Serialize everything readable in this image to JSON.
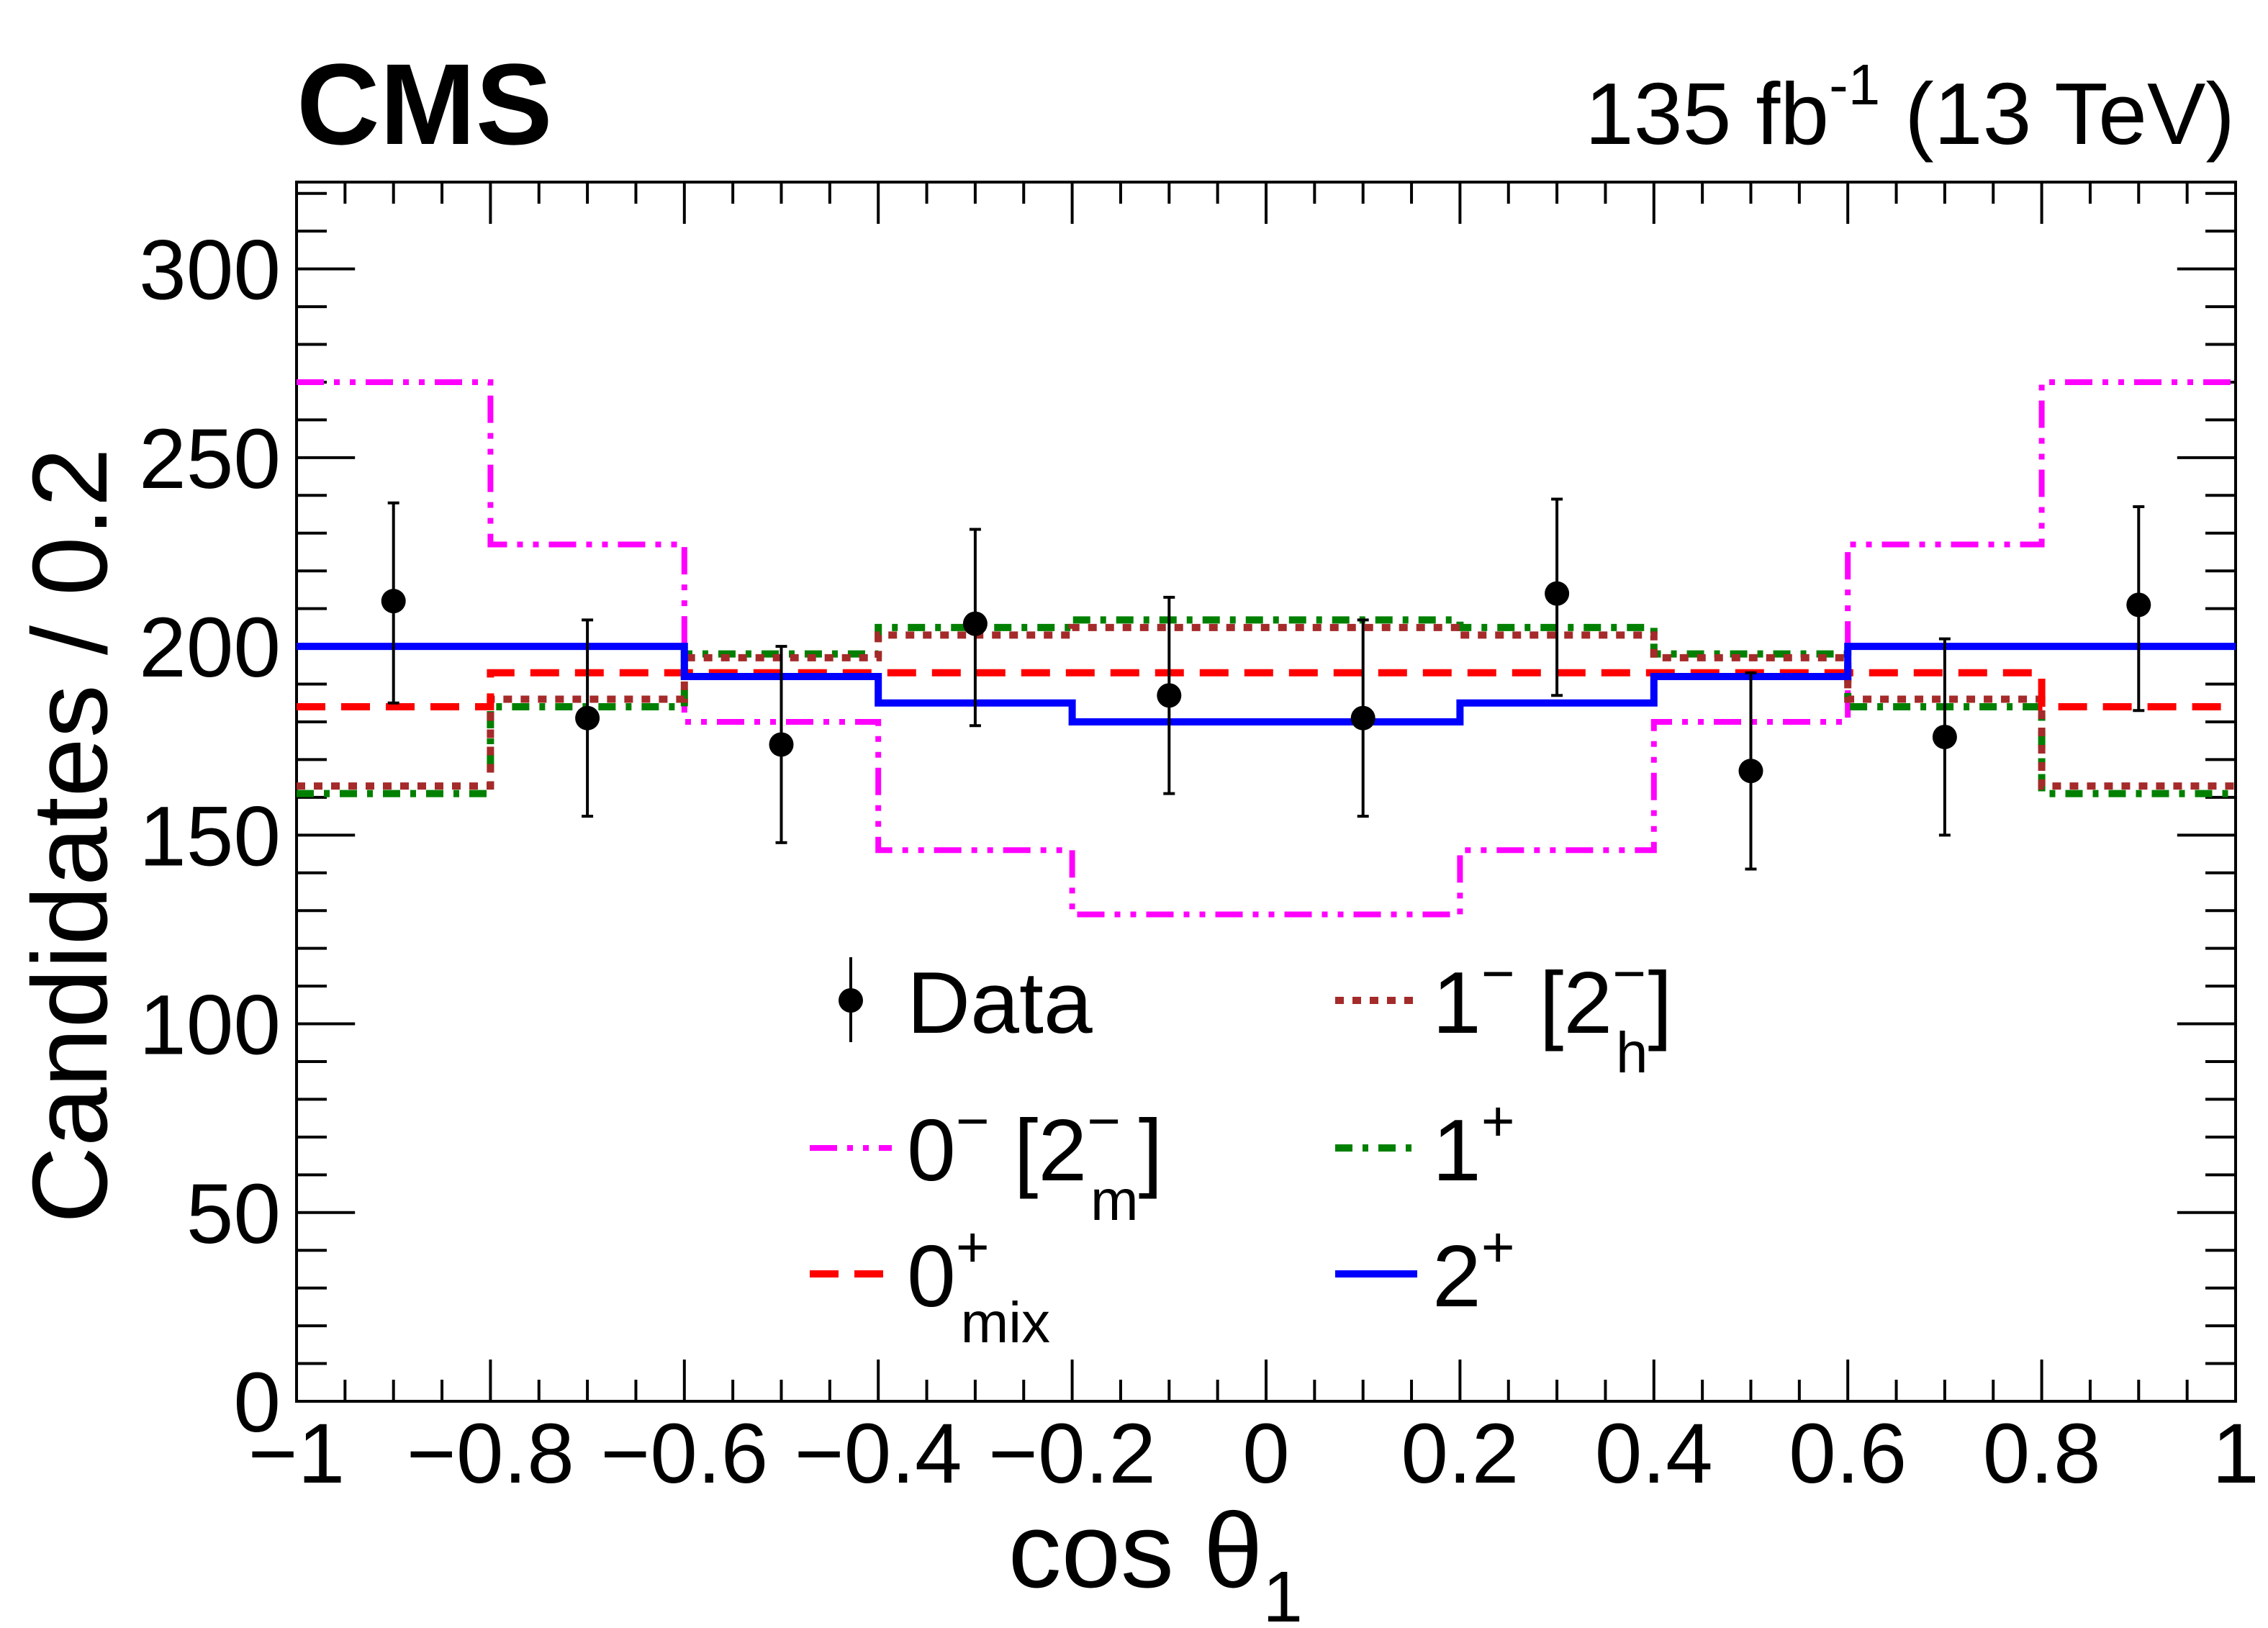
{
  "experiment_label": "CMS",
  "lumi_label": "135 fb",
  "lumi_exp": "-1",
  "energy_label": " (13 TeV)",
  "chart_data": {
    "type": "histogram",
    "xlabel": "cos θ",
    "xlabel_sub": "1",
    "ylabel": "Candidates / 0.2",
    "xlim": [
      -1,
      1
    ],
    "ylim": [
      0,
      323
    ],
    "x_ticks": [
      -1,
      -0.8,
      -0.6,
      -0.4,
      -0.2,
      0,
      0.2,
      0.4,
      0.6,
      0.8,
      1
    ],
    "x_tick_labels": [
      "−1",
      "−0.8",
      "−0.6",
      "−0.4",
      "−0.2",
      "0",
      "0.2",
      "0.4",
      "0.6",
      "0.8",
      "1"
    ],
    "y_ticks": [
      0,
      50,
      100,
      150,
      200,
      250,
      300
    ],
    "y_tick_labels": [
      "0",
      "50",
      "100",
      "150",
      "200",
      "250",
      "300"
    ],
    "bin_edges": [
      -1,
      -0.8,
      -0.6,
      -0.4,
      -0.2,
      0,
      0.2,
      0.4,
      0.6,
      0.8,
      1
    ],
    "data": {
      "name": "Data",
      "x": [
        -0.9,
        -0.7,
        -0.5,
        -0.3,
        -0.1,
        0.1,
        0.3,
        0.5,
        0.7,
        0.9
      ],
      "y": [
        212,
        181,
        174,
        206,
        187,
        181,
        214,
        167,
        176,
        211
      ],
      "err_low": [
        27,
        26,
        26,
        27,
        26,
        26,
        27,
        26,
        26,
        28
      ],
      "err_high": [
        26,
        26,
        26,
        25,
        26,
        26,
        25,
        26,
        26,
        26
      ]
    },
    "series": [
      {
        "name": "0⁻ [2⁻m]",
        "color": "#ff00ff",
        "style": "dash-dot-dot",
        "values": [
          270,
          227,
          180,
          146,
          129,
          129,
          146,
          180,
          227,
          270
        ]
      },
      {
        "name": "0⁺mix",
        "color": "#ff0000",
        "style": "dashed",
        "values": [
          184,
          193,
          193,
          193,
          193,
          193,
          193,
          193,
          193,
          184
        ]
      },
      {
        "name": "1⁻ [2⁻h]",
        "color": "#a52a2a",
        "style": "dotted",
        "values": [
          163,
          186,
          197,
          203,
          205,
          205,
          203,
          197,
          186,
          163
        ]
      },
      {
        "name": "1⁺",
        "color": "#008000",
        "style": "dash-dot",
        "values": [
          161,
          184,
          198,
          205,
          207,
          207,
          205,
          198,
          184,
          161
        ]
      },
      {
        "name": "2⁺",
        "color": "#0000ff",
        "style": "solid",
        "values": [
          200,
          200,
          192,
          185,
          180,
          180,
          185,
          192,
          200,
          200
        ]
      }
    ],
    "legend": {
      "placement": "bottom-center",
      "entries": [
        {
          "key": "data",
          "label": "Data"
        },
        {
          "key": "s1m",
          "label": "1",
          "sup": "−",
          "bracket": " [2",
          "bsup": "−",
          "bsub": "h",
          "close": "]"
        },
        {
          "key": "s0m",
          "label": "0",
          "sup": "−",
          "bracket": " [2",
          "bsup": "−",
          "bsub": "m",
          "close": "]"
        },
        {
          "key": "s1p",
          "label": "1",
          "sup": "+"
        },
        {
          "key": "s0mix",
          "label": "0",
          "sup": "+",
          "sub": "mix"
        },
        {
          "key": "s2p",
          "label": "2",
          "sup": "+"
        }
      ]
    }
  }
}
